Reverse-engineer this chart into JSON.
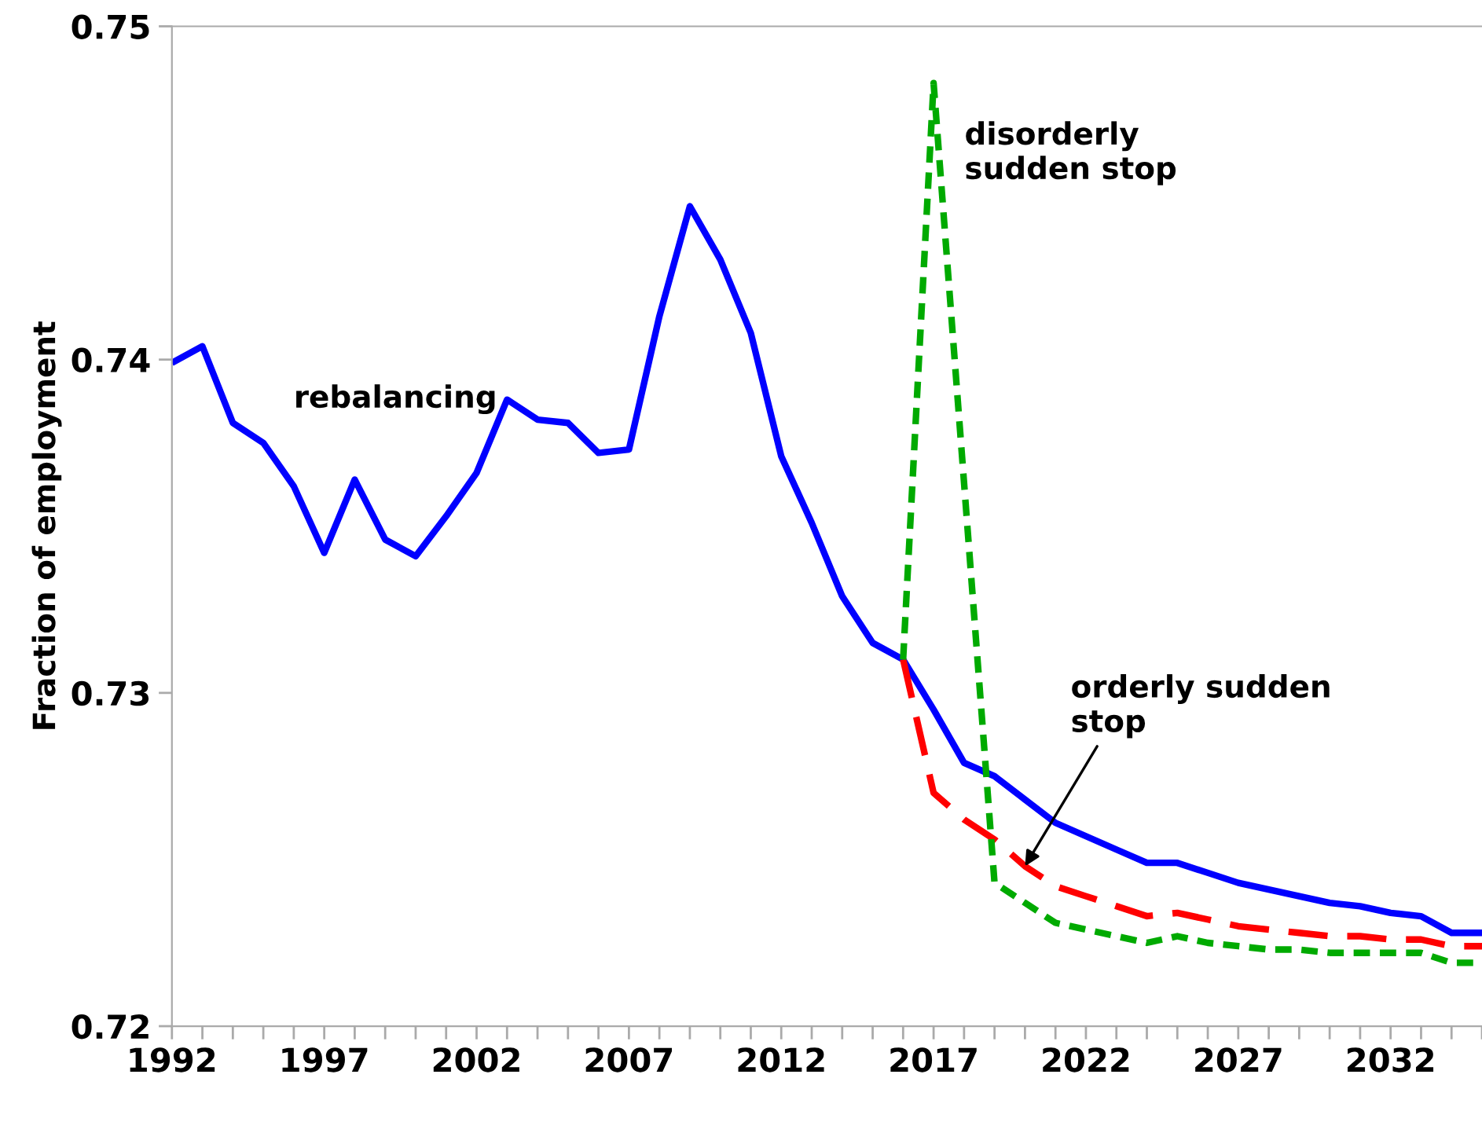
{
  "chart_data": {
    "type": "line",
    "ylabel": "Fraction of employment",
    "xlim": [
      1992,
      2035
    ],
    "ylim": [
      0.72,
      0.75
    ],
    "yticks": [
      0.72,
      0.73,
      0.74,
      0.75
    ],
    "xticks": [
      1992,
      {
        "value": 1993,
        "label": null
      },
      {
        "value": 1994,
        "label": null
      },
      {
        "value": 1995,
        "label": null
      },
      {
        "value": 1996,
        "label": null
      },
      1997,
      {
        "value": 1998,
        "label": null
      },
      {
        "value": 1999,
        "label": null
      },
      {
        "value": 2000,
        "label": null
      },
      {
        "value": 2001,
        "label": null
      },
      2002,
      {
        "value": 2003,
        "label": null
      },
      {
        "value": 2004,
        "label": null
      },
      {
        "value": 2005,
        "label": null
      },
      {
        "value": 2006,
        "label": null
      },
      2007,
      {
        "value": 2008,
        "label": null
      },
      {
        "value": 2009,
        "label": null
      },
      {
        "value": 2010,
        "label": null
      },
      {
        "value": 2011,
        "label": null
      },
      2012,
      {
        "value": 2013,
        "label": null
      },
      {
        "value": 2014,
        "label": null
      },
      {
        "value": 2015,
        "label": null
      },
      {
        "value": 2016,
        "label": null
      },
      2017,
      {
        "value": 2018,
        "label": null
      },
      {
        "value": 2019,
        "label": null
      },
      {
        "value": 2020,
        "label": null
      },
      {
        "value": 2021,
        "label": null
      },
      2022,
      {
        "value": 2023,
        "label": null
      },
      {
        "value": 2024,
        "label": null
      },
      {
        "value": 2025,
        "label": null
      },
      {
        "value": 2026,
        "label": null
      },
      2027,
      {
        "value": 2028,
        "label": null
      },
      {
        "value": 2029,
        "label": null
      },
      {
        "value": 2030,
        "label": null
      },
      {
        "value": 2031,
        "label": null
      },
      2032,
      {
        "value": 2033,
        "label": null
      },
      {
        "value": 2034,
        "label": null
      },
      {
        "value": 2035,
        "label": null
      }
    ],
    "grid": false,
    "legend": false,
    "marker": "none",
    "series": [
      {
        "color": "#0000ff",
        "line_style": "solid",
        "x": [
          1992,
          1993,
          1994,
          1995,
          1996,
          1997,
          1998,
          1999,
          2000,
          2001,
          2002,
          2003,
          2004,
          2005,
          2006,
          2007,
          2008,
          2009,
          2010,
          2011,
          2012,
          2013,
          2014,
          2015,
          2016,
          2017,
          2018,
          2019,
          2020,
          2021,
          2022,
          2023,
          2024,
          2025,
          2026,
          2027,
          2028,
          2029,
          2030,
          2031,
          2032,
          2033,
          2034,
          2035
        ],
        "values": [
          0.7399,
          0.7404,
          0.7381,
          0.7375,
          0.7362,
          0.7342,
          0.7364,
          0.7346,
          0.7341,
          0.7353,
          0.7366,
          0.7388,
          0.7382,
          0.7381,
          0.7372,
          0.7373,
          0.7413,
          0.7446,
          0.743,
          0.7408,
          0.7371,
          0.7351,
          0.7329,
          0.7315,
          0.731,
          0.7295,
          0.7279,
          0.7275,
          0.7268,
          0.7261,
          0.7257,
          0.7253,
          0.7249,
          0.7249,
          0.7246,
          0.7243,
          0.7241,
          0.7239,
          0.7237,
          0.7236,
          0.7234,
          0.7233,
          0.7228,
          0.7228
        ]
      },
      {
        "color": "#ff0000",
        "line_style": "dashed",
        "x": [
          2016,
          2017,
          2018,
          2019,
          2020,
          2021,
          2022,
          2023,
          2024,
          2025,
          2026,
          2027,
          2028,
          2029,
          2030,
          2031,
          2032,
          2033,
          2034,
          2035
        ],
        "values": [
          0.731,
          0.727,
          0.7262,
          0.7256,
          0.7248,
          0.7242,
          0.7239,
          0.7236,
          0.7233,
          0.7234,
          0.7232,
          0.723,
          0.7229,
          0.7228,
          0.7227,
          0.7227,
          0.7226,
          0.7226,
          0.7224,
          0.7224
        ]
      },
      {
        "color": "#00aa00",
        "line_style": "dotted",
        "x": [
          2016,
          2017,
          2019,
          2020,
          2021,
          2022,
          2023,
          2024,
          2025,
          2026,
          2027,
          2028,
          2029,
          2030,
          2031,
          2032,
          2033,
          2034,
          2035
        ],
        "values": [
          0.731,
          0.7483,
          0.7243,
          0.7237,
          0.7231,
          0.7229,
          0.7227,
          0.7225,
          0.7227,
          0.7225,
          0.7224,
          0.7223,
          0.7223,
          0.7222,
          0.7222,
          0.7222,
          0.7222,
          0.7219,
          0.7219
        ]
      }
    ],
    "annotations": [
      "rebalancing",
      "disorderly\nsudden stop",
      {
        "text": "orderly sudden\nstop",
        "x": 2020,
        "y": 0.7248
      }
    ]
  }
}
